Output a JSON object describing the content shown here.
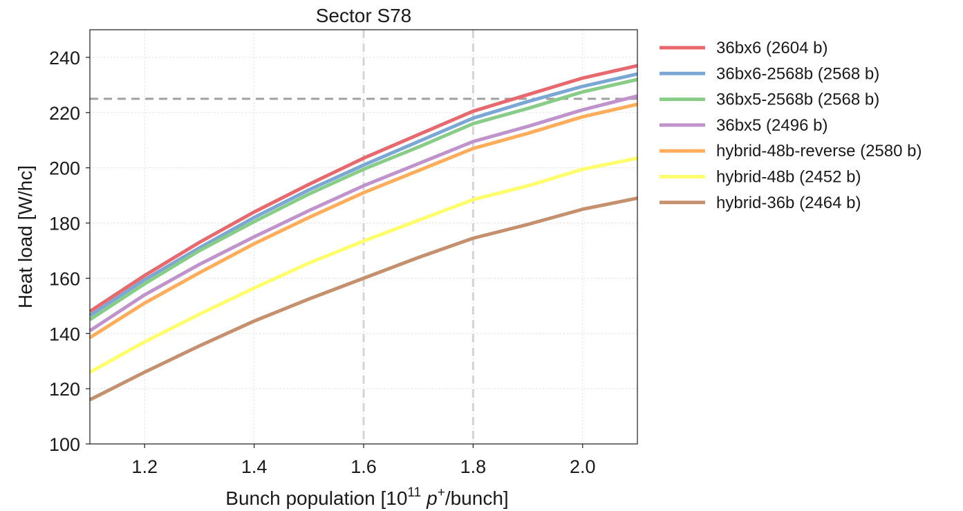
{
  "chart_data": {
    "type": "line",
    "title": "Sector S78",
    "xlabel": {
      "prefix": "Bunch population [10",
      "exponent": "11",
      "symbol": "p",
      "symbol_sup": "+",
      "suffix": "/bunch]"
    },
    "ylabel": "Heat load [W/hc]",
    "xlim": [
      1.1,
      2.1
    ],
    "ylim": [
      100,
      250
    ],
    "xticks": [
      1.2,
      1.4,
      1.6,
      1.8,
      2.0
    ],
    "xtick_labels": [
      "1.2",
      "1.4",
      "1.6",
      "1.8",
      "2.0"
    ],
    "yticks": [
      100,
      120,
      140,
      160,
      180,
      200,
      220,
      240
    ],
    "ytick_labels": [
      "100",
      "120",
      "140",
      "160",
      "180",
      "200",
      "220",
      "240"
    ],
    "grid": true,
    "legend_position": "outside-right",
    "reference_lines": [
      {
        "orientation": "horizontal",
        "value": 225,
        "color": "#a0a0a0"
      },
      {
        "orientation": "vertical",
        "value": 1.6,
        "color": "#d4d4d4"
      },
      {
        "orientation": "vertical",
        "value": 1.8,
        "color": "#d4d4d4"
      }
    ],
    "x": [
      1.1,
      1.2,
      1.3,
      1.4,
      1.5,
      1.6,
      1.7,
      1.8,
      1.9,
      2.0,
      2.1
    ],
    "series": [
      {
        "name": "36bx6 (2604 b)",
        "color": "#e8696d",
        "values": [
          148,
          161,
          173,
          184,
          194,
          203.5,
          212,
          220.5,
          226.5,
          232.5,
          237
        ]
      },
      {
        "name": "36bx6-2568b (2568 b)",
        "color": "#7ba7d4",
        "values": [
          146.5,
          159.5,
          171,
          182,
          192,
          201,
          209.5,
          218,
          224,
          229.5,
          234
        ]
      },
      {
        "name": "36bx5-2568b (2568 b)",
        "color": "#88cc88",
        "values": [
          145,
          158,
          170,
          180.5,
          190.5,
          199.5,
          207.5,
          216,
          221.5,
          227.5,
          232
        ]
      },
      {
        "name": "36bx5 (2496 b)",
        "color": "#c093cc",
        "values": [
          141,
          154,
          165,
          175,
          184.5,
          193.5,
          201.5,
          209.5,
          215,
          221,
          226
        ]
      },
      {
        "name": "hybrid-48b-reverse (2580 b)",
        "color": "#ffad5b",
        "values": [
          138.5,
          151,
          162,
          172.5,
          182,
          191,
          199,
          207,
          212.5,
          218.5,
          223
        ]
      },
      {
        "name": "hybrid-48b (2452 b)",
        "color": "#ffff6b",
        "values": [
          126,
          137,
          147,
          156.5,
          165.5,
          173.5,
          181,
          188.5,
          193.5,
          199.5,
          203.5
        ]
      },
      {
        "name": "hybrid-36b (2464 b)",
        "color": "#c4906e",
        "values": [
          116,
          126,
          135.5,
          144.5,
          152.5,
          160,
          167.5,
          174.5,
          179.5,
          185,
          189
        ]
      }
    ]
  }
}
